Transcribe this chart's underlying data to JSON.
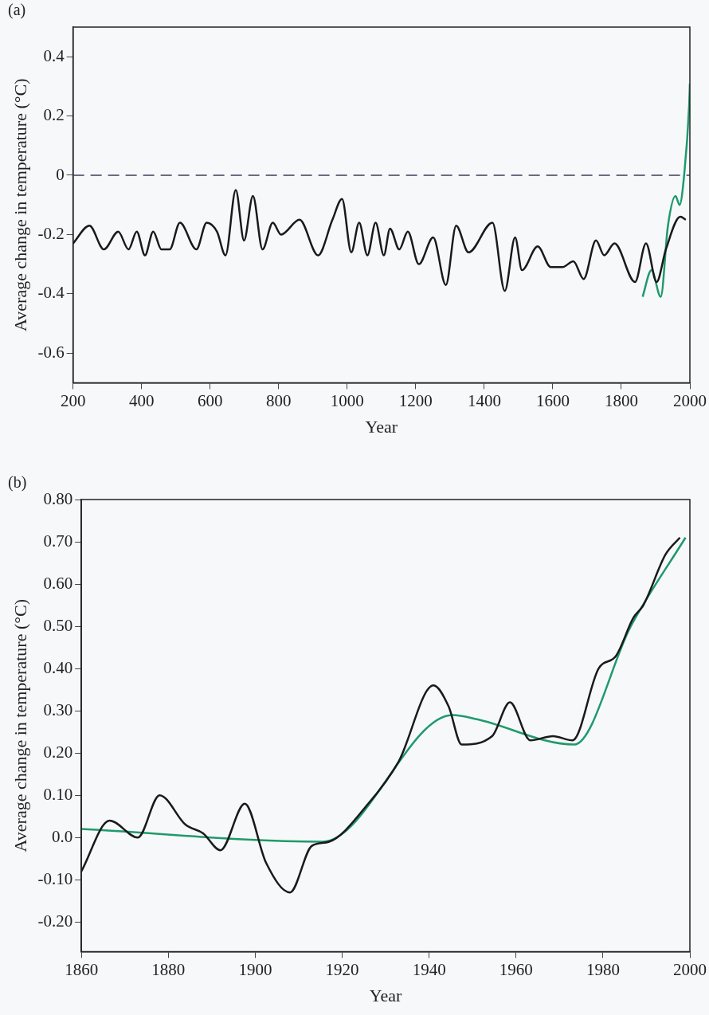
{
  "chart_data": [
    {
      "type": "line",
      "title": "(a)",
      "xlabel": "Year",
      "ylabel": "Average change in temperature (°C)",
      "xlim": [
        200,
        2000
      ],
      "ylim": [
        -0.7,
        0.5
      ],
      "xticks": [
        200,
        400,
        600,
        800,
        1000,
        1200,
        1400,
        1600,
        1800,
        2000
      ],
      "yticks": [
        0.4,
        0.2,
        0,
        -0.2,
        -0.4,
        -0.6
      ],
      "ref_lines": [
        {
          "axis": "y",
          "value": 0,
          "color": "#6f6a80",
          "line_style": "dashed"
        }
      ],
      "series": [
        {
          "color": "#1a1a1a",
          "x": [
            200,
            248,
            290,
            332,
            362,
            386,
            410,
            434,
            458,
            482,
            512,
            560,
            590,
            620,
            645,
            675,
            699,
            725,
            753,
            783,
            807,
            861,
            915,
            957,
            985,
            1012,
            1035,
            1059,
            1083,
            1107,
            1125,
            1152,
            1177,
            1209,
            1251,
            1288,
            1318,
            1354,
            1424,
            1460,
            1490,
            1510,
            1556,
            1594,
            1628,
            1660,
            1690,
            1726,
            1750,
            1780,
            1840,
            1872,
            1903,
            1930,
            1972,
            1988
          ],
          "values": [
            -0.23,
            -0.17,
            -0.25,
            -0.19,
            -0.25,
            -0.19,
            -0.27,
            -0.19,
            -0.25,
            -0.25,
            -0.16,
            -0.25,
            -0.16,
            -0.19,
            -0.27,
            -0.05,
            -0.22,
            -0.07,
            -0.25,
            -0.16,
            -0.2,
            -0.15,
            -0.27,
            -0.15,
            -0.08,
            -0.26,
            -0.16,
            -0.27,
            -0.16,
            -0.27,
            -0.18,
            -0.25,
            -0.19,
            -0.3,
            -0.21,
            -0.37,
            -0.17,
            -0.26,
            -0.16,
            -0.39,
            -0.21,
            -0.32,
            -0.24,
            -0.31,
            -0.31,
            -0.29,
            -0.35,
            -0.22,
            -0.27,
            -0.23,
            -0.36,
            -0.23,
            -0.36,
            -0.25,
            -0.14,
            -0.15
          ]
        },
        {
          "color": "#1f9a6b",
          "x": [
            1862,
            1888,
            1915,
            1936,
            1958,
            1970,
            1984,
            1998,
            2000
          ],
          "values": [
            -0.41,
            -0.32,
            -0.41,
            -0.17,
            -0.07,
            -0.1,
            0.01,
            0.24,
            0.31
          ]
        }
      ]
    },
    {
      "type": "line",
      "title": "(b)",
      "xlabel": "Year",
      "ylabel": "Average change in temperature (°C)",
      "xlim": [
        1860,
        2000
      ],
      "ylim": [
        -0.27,
        0.8
      ],
      "xticks": [
        1860,
        1880,
        1900,
        1920,
        1940,
        1960,
        1980,
        2000
      ],
      "yticks": [
        {
          "value": 0.8,
          "label": "0.80"
        },
        {
          "value": 0.7,
          "label": "0.70"
        },
        {
          "value": 0.6,
          "label": "0.60"
        },
        {
          "value": 0.5,
          "label": "0.50"
        },
        {
          "value": 0.4,
          "label": "0.40"
        },
        {
          "value": 0.3,
          "label": "0.30"
        },
        {
          "value": 0.2,
          "label": "0.20"
        },
        {
          "value": 0.1,
          "label": "0.10"
        },
        {
          "value": 0,
          "label": "0.0"
        },
        {
          "value": -0.1,
          "label": "-0.10"
        },
        {
          "value": -0.2,
          "label": "-0.20"
        }
      ],
      "series": [
        {
          "color": "#1a1a1a",
          "x": [
            1860,
            1866.5,
            1873,
            1878,
            1884,
            1888,
            1892,
            1897.6,
            1902.5,
            1908,
            1913,
            1917,
            1926,
            1933,
            1941,
            1944.5,
            1947.5,
            1954.5,
            1958.6,
            1963.3,
            1968.5,
            1973,
            1979,
            1983,
            1987,
            1989.3,
            1994.4,
            1997.7
          ],
          "values": [
            -0.08,
            0.04,
            0,
            0.1,
            0.03,
            0.01,
            -0.03,
            0.08,
            -0.06,
            -0.13,
            -0.02,
            -0.01,
            0.08,
            0.18,
            0.36,
            0.31,
            0.22,
            0.24,
            0.32,
            0.23,
            0.24,
            0.23,
            0.4,
            0.43,
            0.52,
            0.55,
            0.67,
            0.71
          ]
        },
        {
          "color": "#1f9a6b",
          "x": [
            1860,
            1915.5,
            1945.4,
            1951,
            1973.4,
            1986.4,
            1999
          ],
          "values": [
            0.02,
            -0.01,
            0.29,
            0.28,
            0.22,
            0.5,
            0.71
          ]
        }
      ]
    }
  ]
}
